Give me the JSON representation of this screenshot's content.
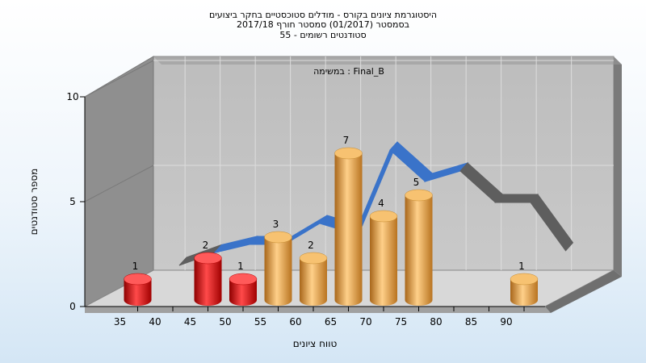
{
  "chart_data": {
    "type": "bar",
    "title_lines": [
      "היסטוגרמת ציונים בקורס - מודלים סטוכסטיים בחקר ביצועים",
      "בסמסטר  (01/2017)  סמסטר חורף 2017/18",
      "55 - סטודנטים רשומים"
    ],
    "plot_caption": "במשימה : Final_B",
    "xlabel": "טווח ציונים",
    "ylabel": "מספר סטודנטים",
    "ylim": [
      0,
      10
    ],
    "y_ticks": [
      0,
      5,
      10
    ],
    "x_ticks": [
      "35",
      "40",
      "45",
      "50",
      "55",
      "60",
      "65",
      "70",
      "75",
      "80",
      "85",
      "90"
    ],
    "bars": [
      {
        "bin": "35",
        "value": 1,
        "color": "#e41a1a"
      },
      {
        "bin": "45",
        "value": 2,
        "color": "#e41a1a"
      },
      {
        "bin": "50",
        "value": 1,
        "color": "#e41a1a"
      },
      {
        "bin": "55",
        "value": 3,
        "color": "#e8a33c"
      },
      {
        "bin": "60",
        "value": 2,
        "color": "#e8a33c"
      },
      {
        "bin": "65",
        "value": 7,
        "color": "#e8a33c"
      },
      {
        "bin": "70",
        "value": 4,
        "color": "#e8a33c"
      },
      {
        "bin": "75",
        "value": 5,
        "color": "#e8a33c"
      },
      {
        "bin": "90",
        "value": 1,
        "color": "#e8a33c"
      }
    ],
    "ribbon": {
      "type": "area",
      "x": [
        40,
        45,
        50,
        55,
        60,
        65,
        70,
        75,
        80,
        85,
        90,
        95
      ],
      "y": [
        1.0,
        1.6,
        2.0,
        2.0,
        3.0,
        2.5,
        6.5,
        5.0,
        5.5,
        4.0,
        4.0,
        1.7
      ],
      "colors": {
        "front": "#3a73c9",
        "back": "#5e5e5e"
      }
    },
    "grid": true,
    "colors": {
      "wall": "#c0c0c0",
      "side_wall": "#909090",
      "floor": "#d6d6d6"
    }
  }
}
